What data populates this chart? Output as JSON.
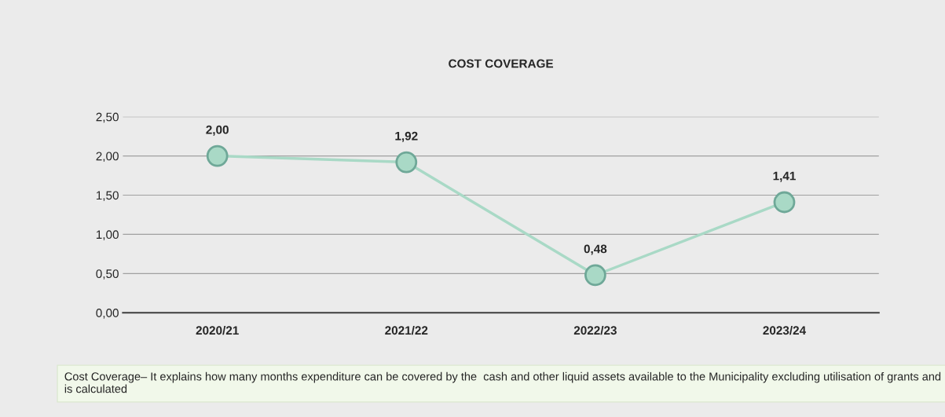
{
  "chart_data": {
    "type": "line",
    "title": "COST COVERAGE",
    "categories": [
      "2020/21",
      "2021/22",
      "2022/23",
      "2023/24"
    ],
    "series": [
      {
        "color": "#a9d9c6",
        "values": [
          2.0,
          1.92,
          0.48,
          1.41
        ],
        "value_labels": [
          "2,00",
          "1,92",
          "0,48",
          "1,41"
        ]
      }
    ],
    "ylim": [
      0,
      2.5
    ],
    "yticks": [
      {
        "value": 0,
        "label": "0,00"
      },
      {
        "value": 0.5,
        "label": "0,50"
      },
      {
        "value": 1,
        "label": "1,00"
      },
      {
        "value": 1.5,
        "label": "1,50"
      },
      {
        "value": 2,
        "label": "2,00"
      },
      {
        "value": 2.5,
        "label": "2,50"
      }
    ],
    "grid": "y",
    "marker": "circle",
    "line_style": "solid",
    "annotations": [
      "Cost Coverage– It explains how many months expenditure can be covered by the  cash and other liquid assets available to the Municipality excluding utilisation of grants and is calculated"
    ]
  }
}
